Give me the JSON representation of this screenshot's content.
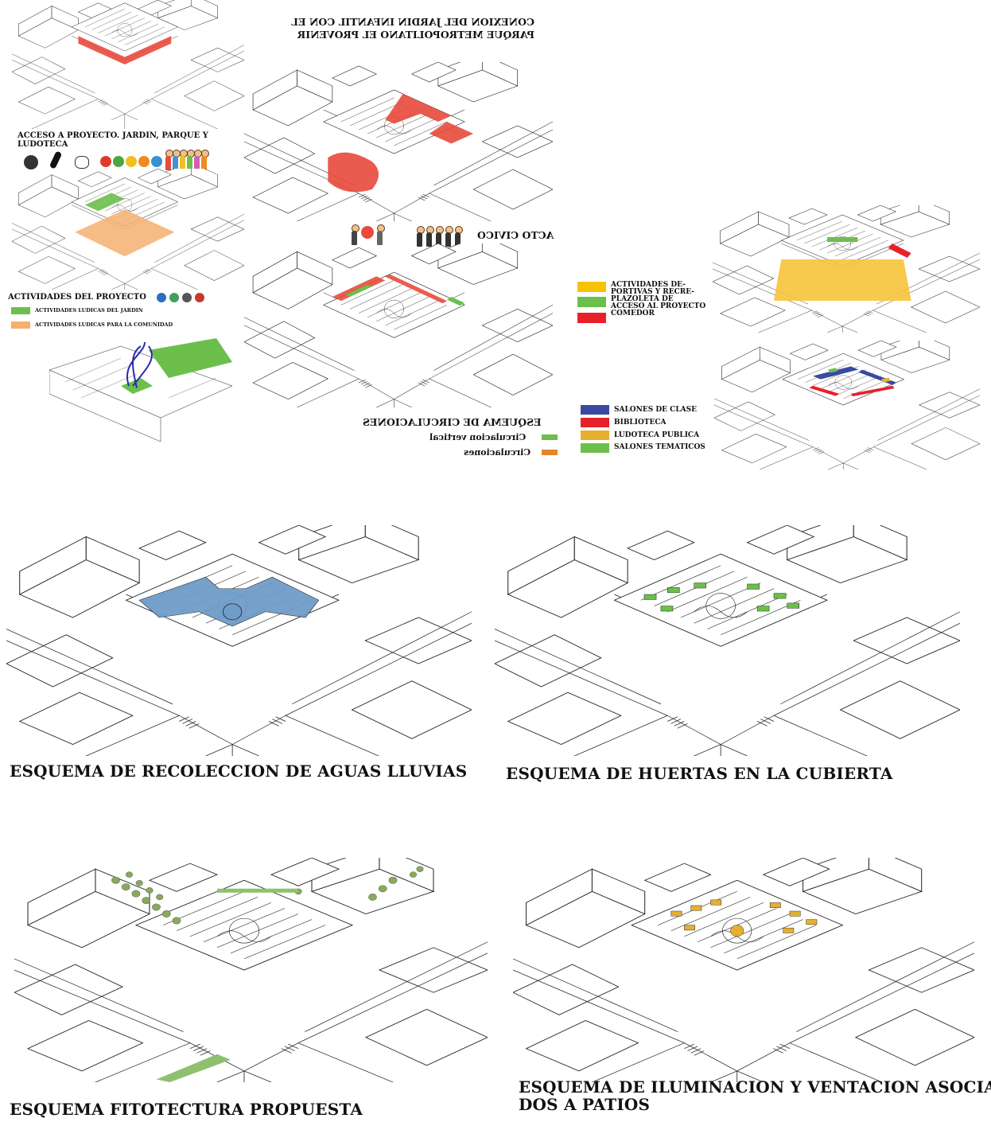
{
  "colors": {
    "red": "#e84a3c",
    "red_legend": "#e8202a",
    "green": "#6cbf4b",
    "orange": "#f5b070",
    "yellow": "#f6c43a",
    "yellow_legend": "#f7c300",
    "blue": "#3a4aa0",
    "blue_roof": "#6f9cc8",
    "ochre": "#e6b02e",
    "line": "#222222"
  },
  "titles": {
    "conexion": "CONEXION DEL JARDIN INFANTIL CON EL\nPARQUE METROPOLITANO EL PROVENIR",
    "acceso": "ACCESO A PROYECTO. JARDIN, PARQUE Y\nLUDOTECA",
    "acto_civico": "ACTO CIVICO",
    "actividades": "ACTIVIDADES DEL PROYECTO",
    "esquema_circulaciones": "ESQUEMA DE CIRCULACIONES",
    "aguas_lluvias": "ESQUEMA DE RECOLECCION DE AGUAS LLUVIAS",
    "huertas": "ESQUEMA DE HUERTAS EN LA CUBIERTA",
    "fitotectura": "ESQUEMA FITOTECTURA PROPUESTA",
    "iluminacion": "ESQUEMA DE ILUMINACION Y VENTACION ASOCIA-\nDOS A PATIOS"
  },
  "legend_actividades": [
    {
      "label": "ACTIVIDADES LUDICAS DEL JARDIN",
      "color": "#6cbf4b"
    },
    {
      "label": "ACTIVIDADES LUDICAS PARA LA COMUNIDAD",
      "color": "#f5b070"
    }
  ],
  "legend_circulaciones": [
    {
      "label": "Circulacion vertical",
      "color": "#6cbf4b"
    },
    {
      "label": "Circulaciones",
      "color": "#e8832a"
    }
  ],
  "legend_zonas": [
    {
      "label": "ACTIVIDADES DE-\nPORTIVAS Y RECRE-",
      "color": "#f7c300"
    },
    {
      "label": "PLAZOLETA DE\nACCESO AL PROYECTO",
      "color": "#6cbf4b"
    },
    {
      "label": "COMEDOR",
      "color": "#e8202a"
    }
  ],
  "legend_salones": [
    {
      "label": "SALONES DE CLASE",
      "color": "#3a4aa0"
    },
    {
      "label": "BIBLIOTECA",
      "color": "#e8202a"
    },
    {
      "label": "LUDOTECA PUBLICA",
      "color": "#e6b02e"
    },
    {
      "label": "SALONES TEMATICOS",
      "color": "#6cbf4b"
    }
  ]
}
